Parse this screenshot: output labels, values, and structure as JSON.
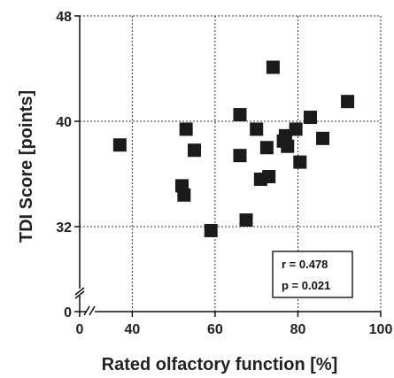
{
  "chart_data": {
    "type": "scatter",
    "xlabel": "Rated olfactory function [%]",
    "ylabel": "TDI Score [points]",
    "x_ticks": [
      {
        "value": 0,
        "label": "0"
      },
      {
        "value": 40,
        "label": "40"
      },
      {
        "value": 60,
        "label": "60"
      },
      {
        "value": 80,
        "label": "80"
      },
      {
        "value": 100,
        "label": "100"
      }
    ],
    "y_ticks": [
      {
        "value": 0,
        "label": "0"
      },
      {
        "value": 32,
        "label": "32"
      },
      {
        "value": 40,
        "label": "40"
      },
      {
        "value": 48,
        "label": "48"
      }
    ],
    "xlim": [
      0,
      100
    ],
    "ylim": [
      0,
      48
    ],
    "axis_breaks": true,
    "grid": "dotted",
    "marker": "square",
    "marker_color": "#1a1a1a",
    "points": [
      {
        "x": 37,
        "y": 38.2
      },
      {
        "x": 52,
        "y": 35.1
      },
      {
        "x": 52.5,
        "y": 34.4
      },
      {
        "x": 53,
        "y": 39.4
      },
      {
        "x": 55,
        "y": 37.8
      },
      {
        "x": 59,
        "y": 31.7
      },
      {
        "x": 66,
        "y": 40.5
      },
      {
        "x": 66,
        "y": 37.4
      },
      {
        "x": 67.5,
        "y": 32.5
      },
      {
        "x": 70,
        "y": 39.4
      },
      {
        "x": 71,
        "y": 35.6
      },
      {
        "x": 72.5,
        "y": 38.0
      },
      {
        "x": 73,
        "y": 35.8
      },
      {
        "x": 74,
        "y": 44.1
      },
      {
        "x": 76.5,
        "y": 38.5
      },
      {
        "x": 77,
        "y": 38.9
      },
      {
        "x": 77.5,
        "y": 38.1
      },
      {
        "x": 79.5,
        "y": 39.4
      },
      {
        "x": 80.5,
        "y": 36.9
      },
      {
        "x": 83,
        "y": 40.3
      },
      {
        "x": 86,
        "y": 38.7
      },
      {
        "x": 92,
        "y": 41.5
      }
    ],
    "annotations": {
      "r": "r =  0.478",
      "p": "p = 0.021"
    }
  }
}
